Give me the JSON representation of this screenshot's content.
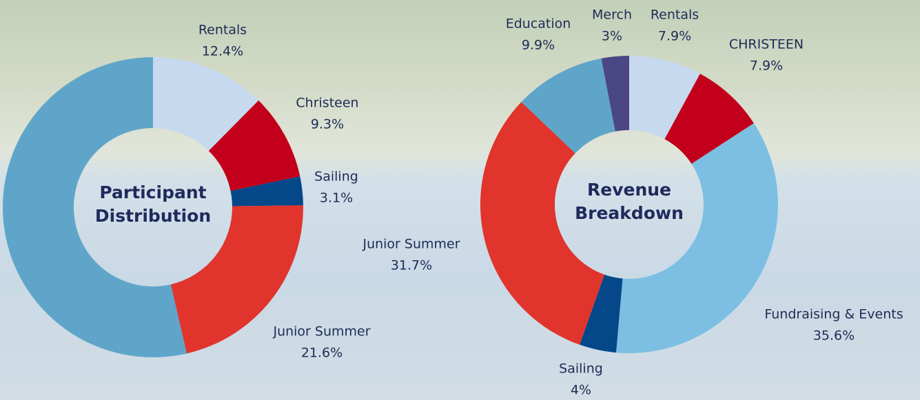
{
  "chart_data": [
    {
      "type": "donut",
      "title": "Participant Distribution",
      "categories": [
        "Rentals",
        "Christeen",
        "Sailing",
        "Junior Summer",
        null
      ],
      "values": [
        12.4,
        9.3,
        3.1,
        21.6,
        53.6
      ],
      "value_labels": [
        "12.4%",
        "9.3%",
        "3.1%",
        "21.6%",
        null
      ],
      "colors": [
        "#c6d9ee",
        "#c3001b",
        "#05488a",
        "#e0342c",
        "#5fa5c9"
      ]
    },
    {
      "type": "donut",
      "title": "Revenue Breakdown",
      "categories": [
        "Rentals",
        "CHRISTEEN",
        "Fundraising & Events",
        "Sailing",
        "Junior Summer",
        "Education",
        "Merch"
      ],
      "values": [
        7.9,
        7.9,
        35.6,
        4,
        31.7,
        9.9,
        3
      ],
      "value_labels": [
        "7.9%",
        "7.9%",
        "35.6%",
        "4%",
        "31.7%",
        "9.9%",
        "3%"
      ],
      "colors": [
        "#c6d9ee",
        "#c3001b",
        "#7cbfe3",
        "#05488a",
        "#e0342c",
        "#5fa5c9",
        "#4b4784"
      ]
    }
  ]
}
